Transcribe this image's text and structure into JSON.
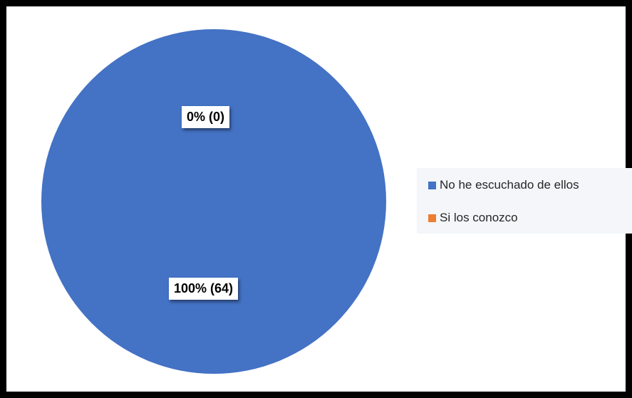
{
  "chart_data": {
    "type": "pie",
    "title": "",
    "slices": [
      {
        "label": "No he escuchado de ellos",
        "value": 64,
        "data_label": "100% (64)",
        "color": "#4472c4"
      },
      {
        "label": "Si los conozco",
        "value": 0,
        "data_label": "0% (0)",
        "color": "#ed7d31"
      }
    ],
    "legend_position": "right"
  }
}
